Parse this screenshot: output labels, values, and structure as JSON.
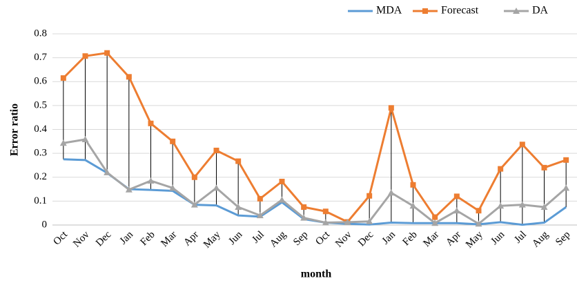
{
  "chart_data": {
    "type": "line",
    "y_label": "Error ratio",
    "x_label": "month",
    "categories": [
      "Oct",
      "Nov",
      "Dec",
      "Jan",
      "Feb",
      "Mar",
      "Apr",
      "May",
      "Jun",
      "Jul",
      "Aug",
      "Sep",
      "Oct",
      "Nov",
      "Dec",
      "Jan",
      "Feb",
      "Mar",
      "Apr",
      "May",
      "Jun",
      "Jul",
      "Aug",
      "Sep"
    ],
    "series": [
      {
        "name": "MDA",
        "color": "#5b9bd5",
        "marker": "none",
        "values": [
          0.275,
          0.272,
          0.218,
          0.15,
          0.147,
          0.143,
          0.085,
          0.082,
          0.04,
          0.035,
          0.095,
          0.025,
          0.01,
          0.005,
          0.002,
          0.01,
          0.008,
          0.008,
          0.008,
          0.003,
          0.012,
          0.001,
          0.01,
          0.075
        ]
      },
      {
        "name": "Forecast",
        "color": "#ed7d31",
        "marker": "square",
        "values": [
          0.615,
          0.707,
          0.72,
          0.62,
          0.425,
          0.35,
          0.2,
          0.312,
          0.267,
          0.11,
          0.182,
          0.075,
          0.057,
          0.013,
          0.122,
          0.49,
          0.168,
          0.033,
          0.12,
          0.06,
          0.235,
          0.337,
          0.24,
          0.272
        ]
      },
      {
        "name": "DA",
        "color": "#a5a5a5",
        "marker": "triangle",
        "values": [
          0.343,
          0.358,
          0.22,
          0.148,
          0.185,
          0.155,
          0.085,
          0.155,
          0.075,
          0.04,
          0.105,
          0.03,
          0.01,
          0.012,
          0.015,
          0.135,
          0.08,
          0.008,
          0.06,
          0.005,
          0.08,
          0.085,
          0.075,
          0.155
        ]
      }
    ],
    "ylim": [
      0,
      0.8
    ],
    "yticks": [
      0,
      0.1,
      0.2,
      0.3,
      0.4,
      0.5,
      0.6,
      0.7,
      0.8
    ],
    "grid": true,
    "high_low_lines": true,
    "legend": "top-right"
  }
}
